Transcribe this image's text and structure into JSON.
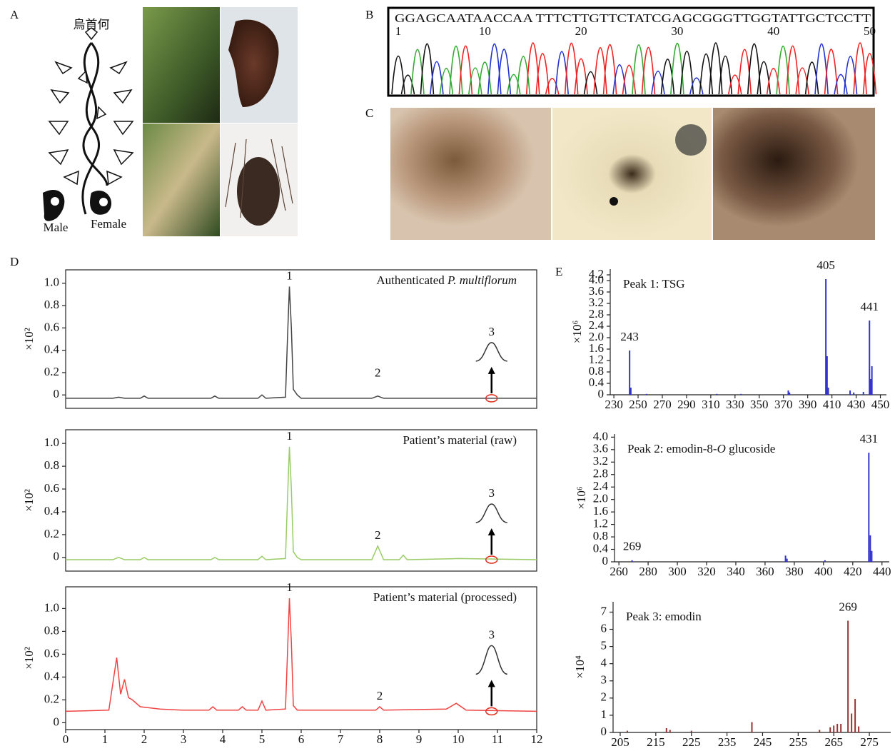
{
  "panels": {
    "a": "A",
    "b": "B",
    "c": "C",
    "d": "D",
    "e": "E"
  },
  "illustration": {
    "title": "烏首何",
    "male": "Male",
    "female": "Female"
  },
  "sequence": {
    "bases": "GGAGCAATAACCAA TTTCTTGTTCTATCGAGCGGGTTGGTATTGCTCCTT",
    "positions": [
      1,
      10,
      20,
      30,
      40,
      50
    ]
  },
  "chart_data": [
    {
      "type": "line",
      "title": [
        "Authenticated ",
        "P. multiflorum"
      ],
      "title_italic": [
        1
      ],
      "y_label": "×10²",
      "color": "#444444",
      "xlim": [
        0,
        12
      ],
      "ylim": [
        -0.12,
        1.12
      ],
      "yticks": [
        0,
        0.2,
        0.4,
        0.6,
        0.8,
        {
          "value": 1,
          "label": "1.0"
        }
      ],
      "x": [
        0,
        1.2,
        1.35,
        1.5,
        1.9,
        2.0,
        2.1,
        3.7,
        3.8,
        3.9,
        4.9,
        5.0,
        5.1,
        5.6,
        5.65,
        5.7,
        5.75,
        5.8,
        5.9,
        6.0,
        7.8,
        7.95,
        8.1,
        9.5,
        12
      ],
      "values": [
        -0.03,
        -0.03,
        -0.02,
        -0.03,
        -0.03,
        -0.01,
        -0.03,
        -0.03,
        -0.01,
        -0.03,
        -0.03,
        0.0,
        -0.03,
        -0.02,
        0.5,
        0.97,
        0.6,
        0.05,
        0.0,
        -0.03,
        -0.03,
        -0.01,
        -0.03,
        -0.03,
        -0.03
      ],
      "peaks": [
        {
          "label": "1",
          "x": 5.7,
          "y": 0.97
        },
        {
          "label": "2",
          "x": 7.95,
          "y": 0.1
        },
        {
          "label": "3",
          "x": 10.85
        }
      ]
    },
    {
      "type": "line",
      "title": [
        "Patient’s material (raw)"
      ],
      "title_italic": [],
      "y_label": "×10²",
      "color": "#99cc66",
      "xlim": [
        0,
        12
      ],
      "ylim": [
        -0.12,
        1.12
      ],
      "yticks": [
        0,
        0.2,
        0.4,
        0.6,
        0.8,
        {
          "value": 1,
          "label": "1.0"
        }
      ],
      "x": [
        0,
        1.2,
        1.35,
        1.5,
        1.9,
        2.0,
        2.1,
        3.7,
        3.8,
        3.9,
        4.9,
        5.0,
        5.1,
        5.6,
        5.65,
        5.7,
        5.75,
        5.8,
        5.9,
        6.0,
        7.8,
        7.95,
        8.1,
        8.5,
        8.6,
        8.7,
        10,
        12
      ],
      "values": [
        -0.02,
        -0.02,
        0.0,
        -0.02,
        -0.02,
        0.0,
        -0.02,
        -0.02,
        0.0,
        -0.02,
        -0.02,
        0.01,
        -0.02,
        -0.01,
        0.5,
        0.97,
        0.6,
        0.05,
        0.0,
        -0.02,
        -0.02,
        0.1,
        -0.02,
        -0.02,
        0.02,
        -0.02,
        -0.01,
        -0.02
      ],
      "peaks": [
        {
          "label": "1",
          "x": 5.7,
          "y": 0.97
        },
        {
          "label": "2",
          "x": 7.95,
          "y": 0.1
        },
        {
          "label": "3",
          "x": 10.85
        }
      ]
    },
    {
      "type": "line",
      "title": [
        "Patient’s material (processed)"
      ],
      "title_italic": [],
      "y_label": "×10²",
      "color": "#ee4444",
      "xlim": [
        0,
        12
      ],
      "ylim": [
        -0.06,
        1.19
      ],
      "yticks": [
        0,
        0.2,
        0.4,
        0.6,
        0.8,
        {
          "value": 1,
          "label": "1.0"
        }
      ],
      "xticks": [
        0,
        1,
        2,
        3,
        4,
        5,
        6,
        7,
        8,
        9,
        10,
        11,
        12
      ],
      "x": [
        0,
        1.1,
        1.3,
        1.4,
        1.5,
        1.6,
        1.7,
        1.9,
        2.4,
        3.0,
        3.65,
        3.75,
        3.85,
        4.4,
        4.5,
        4.6,
        4.9,
        5.0,
        5.1,
        5.6,
        5.65,
        5.7,
        5.75,
        5.8,
        5.9,
        7.9,
        8.0,
        8.1,
        9.7,
        9.95,
        10.2,
        12
      ],
      "values": [
        0.1,
        0.11,
        0.57,
        0.25,
        0.38,
        0.22,
        0.2,
        0.14,
        0.12,
        0.11,
        0.11,
        0.14,
        0.11,
        0.11,
        0.14,
        0.11,
        0.11,
        0.19,
        0.11,
        0.12,
        0.6,
        1.09,
        0.7,
        0.15,
        0.11,
        0.11,
        0.14,
        0.11,
        0.12,
        0.17,
        0.11,
        0.1
      ],
      "peaks": [
        {
          "label": "1",
          "x": 5.7,
          "y": 1.09
        },
        {
          "label": "2",
          "x": 8.0,
          "y": 0.14
        },
        {
          "label": "3",
          "x": 10.85
        }
      ]
    },
    {
      "type": "bar",
      "title": [
        "Peak 1: TSG"
      ],
      "title_italic": [],
      "y_label": "×10⁶",
      "color": "#3333cc",
      "xlim": [
        227,
        455
      ],
      "ylim": [
        0,
        4.4
      ],
      "xticks": [
        230,
        250,
        270,
        290,
        310,
        330,
        350,
        370,
        390,
        410,
        430,
        450
      ],
      "yticks": [
        0,
        0.4,
        0.8,
        1.2,
        1.6,
        {
          "value": 2,
          "label": "2.0"
        },
        2.4,
        2.8,
        3.2,
        3.6,
        {
          "value": 4,
          "label": "4.0"
        },
        4.2
      ],
      "x": [
        243,
        244,
        257,
        315,
        335,
        374,
        375,
        405,
        406,
        407,
        425,
        428,
        436,
        441,
        442,
        443
      ],
      "values": [
        1.55,
        0.25,
        0.03,
        0.03,
        0.03,
        0.15,
        0.08,
        4.05,
        1.35,
        0.25,
        0.15,
        0.08,
        0.1,
        2.6,
        0.55,
        1.0
      ],
      "labeled": [
        243,
        405,
        441
      ]
    },
    {
      "type": "bar",
      "title": [
        "Peak 2: emodin-8-",
        "O",
        " glucoside"
      ],
      "title_italic": [
        1
      ],
      "y_label": "×10⁶",
      "color": "#3333cc",
      "xlim": [
        257,
        445
      ],
      "ylim": [
        0,
        4.1
      ],
      "xticks": [
        260,
        280,
        300,
        320,
        340,
        360,
        380,
        400,
        420,
        440
      ],
      "yticks": [
        0,
        0.4,
        0.8,
        1.2,
        1.6,
        {
          "value": 2,
          "label": "2.0"
        },
        2.4,
        2.8,
        3.2,
        3.6,
        {
          "value": 4,
          "label": "4.0"
        }
      ],
      "x": [
        269,
        374,
        375,
        401,
        431,
        432,
        433
      ],
      "values": [
        0.05,
        0.2,
        0.1,
        0.05,
        3.5,
        0.85,
        0.35
      ],
      "labeled": [
        269,
        431
      ]
    },
    {
      "type": "bar",
      "title": [
        "Peak 3: emodin"
      ],
      "title_italic": [],
      "y_label": "×10⁴",
      "color": "#993333",
      "xlim": [
        203,
        281
      ],
      "ylim": [
        0,
        7.6
      ],
      "xticks": [
        205,
        215,
        225,
        235,
        245,
        255,
        265,
        275
      ],
      "yticks": [
        0,
        1,
        2,
        3,
        4,
        5,
        6,
        7
      ],
      "x": [
        207,
        218,
        219,
        225,
        242,
        261,
        264,
        265,
        266,
        267,
        269,
        270,
        271,
        272
      ],
      "values": [
        0.1,
        0.25,
        0.15,
        0.1,
        0.6,
        0.15,
        0.3,
        0.4,
        0.5,
        0.5,
        6.5,
        1.1,
        1.95,
        0.35
      ],
      "labeled": [
        269
      ]
    }
  ]
}
